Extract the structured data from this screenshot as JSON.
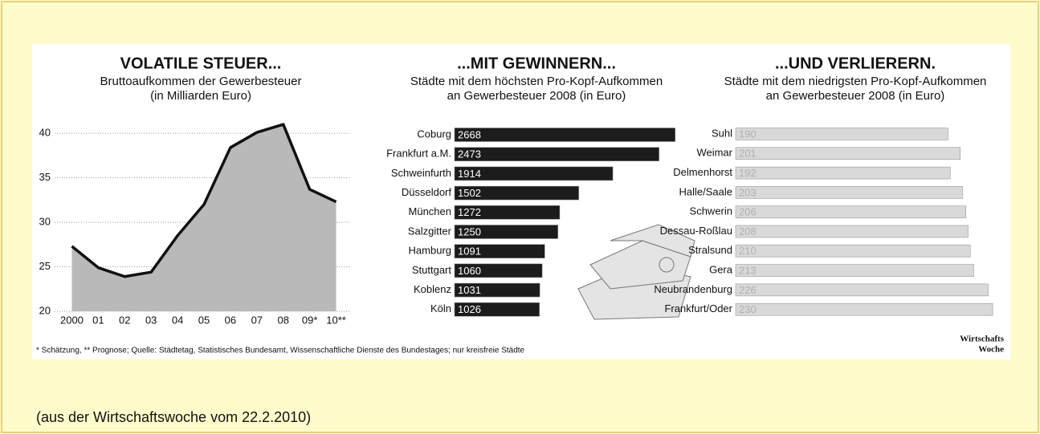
{
  "chart_data": [
    {
      "type": "line",
      "title": "VOLATILE STEUER...",
      "subtitle": [
        "Bruttoaufkommen der Gewerbesteuer",
        "(in Milliarden Euro)"
      ],
      "categories": [
        "2000",
        "01",
        "02",
        "03",
        "04",
        "05",
        "06",
        "07",
        "08",
        "09*",
        "10**"
      ],
      "values": [
        27.3,
        24.9,
        23.9,
        24.4,
        28.5,
        32.0,
        38.4,
        40.1,
        41.0,
        33.7,
        32.3
      ],
      "color": "#111111",
      "area_color": "#b9b9b9",
      "ylim": [
        20,
        42
      ],
      "yticks": [
        20,
        25,
        30,
        35,
        40
      ],
      "grid": true
    },
    {
      "type": "bar",
      "orientation": "horizontal",
      "title": "...MIT GEWINNERN...",
      "subtitle": [
        "Städte mit dem höchsten Pro-Kopf-Aufkommen",
        "an Gewerbesteuer 2008 (in Euro)"
      ],
      "categories": [
        "Coburg",
        "Frankfurt a.M.",
        "Schweinfurth",
        "Düsseldorf",
        "München",
        "Salzgitter",
        "Hamburg",
        "Stuttgart",
        "Koblenz",
        "Köln"
      ],
      "values": [
        2668,
        2473,
        1914,
        1502,
        1272,
        1250,
        1091,
        1060,
        1031,
        1026
      ],
      "color": "#1c1c1c",
      "label_color": "#ffffff",
      "xlim": [
        0,
        2700
      ]
    },
    {
      "type": "bar",
      "orientation": "horizontal",
      "title": "...UND VERLIERERN.",
      "subtitle": [
        "Städte mit dem niedrigsten Pro-Kopf-Aufkommen",
        "an Gewerbesteuer 2008 (in Euro)"
      ],
      "categories": [
        "Suhl",
        "Weimar",
        "Delmenhorst",
        "Halle/Saale",
        "Schwerin",
        "Dessau-Roßlau",
        "Stralsund",
        "Gera",
        "Neubrandenburg",
        "Frankfurt/Oder"
      ],
      "values": [
        190,
        201,
        192,
        203,
        206,
        208,
        210,
        213,
        226,
        230
      ],
      "color": "#d9d9d9",
      "label_color": "#b0b0b0",
      "xlim": [
        0,
        240
      ]
    }
  ],
  "footnote": "* Schätzung, ** Prognose; Quelle: Städtetag, Statistisches Bundesamt, Wissenschaftliche Dienste des Bundestages; nur kreisfreie Städte",
  "logo": [
    "Wirtschafts",
    "Woche"
  ],
  "caption": "(aus der Wirtschaftswoche vom 22.2.2010)"
}
